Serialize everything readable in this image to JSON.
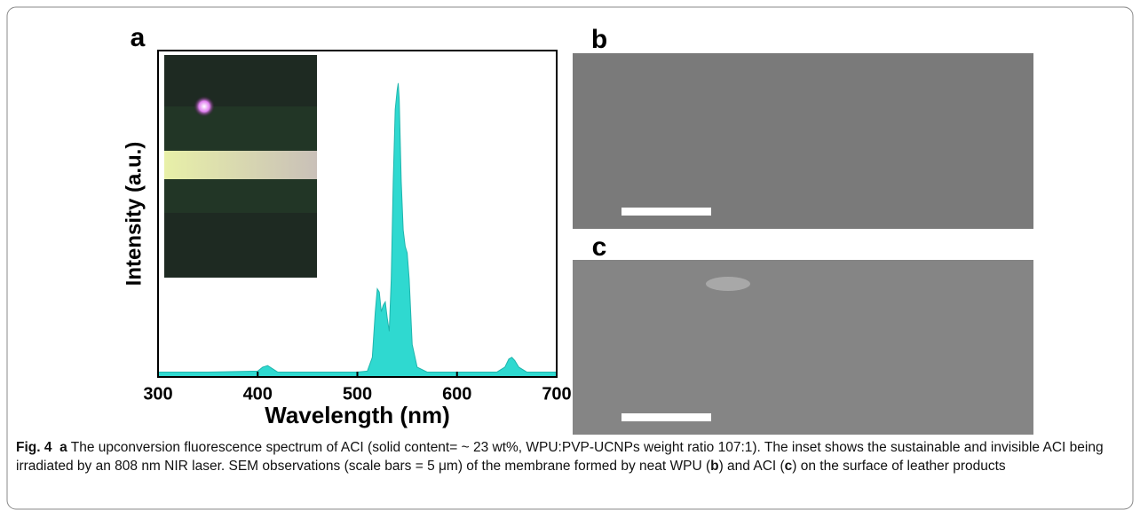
{
  "panel_labels": [
    "a",
    "b",
    "c"
  ],
  "chart_data": {
    "type": "area",
    "xlabel": "Wavelength (nm)",
    "ylabel": "Intensity (a.u.)",
    "color": "#2fd9d0",
    "x": [
      300,
      350,
      400,
      405,
      410,
      415,
      420,
      450,
      500,
      510,
      515,
      518,
      520,
      522,
      524,
      526,
      528,
      530,
      532,
      534,
      536,
      538,
      540,
      541,
      542,
      544,
      546,
      548,
      550,
      552,
      555,
      560,
      570,
      600,
      640,
      648,
      652,
      655,
      658,
      662,
      670,
      700
    ],
    "values": [
      1.5,
      1.5,
      1.8,
      3,
      3.5,
      2.5,
      1.5,
      1.5,
      1.5,
      1.8,
      6,
      20,
      27,
      26,
      20,
      22,
      23,
      18,
      14,
      30,
      60,
      82,
      88,
      90,
      85,
      60,
      45,
      40,
      38,
      30,
      10,
      3,
      1.5,
      1.5,
      1.5,
      3,
      5.5,
      6,
      5,
      3,
      1.5,
      1.5
    ],
    "xlim": [
      300,
      700
    ],
    "xticks": [
      300,
      400,
      500,
      600,
      700
    ],
    "ylim": [
      0,
      100
    ]
  },
  "caption": {
    "runs": [
      "Fig. 4",
      "a",
      "The upconversion fluorescence spectrum of ACI (solid content= ~ 23 wt%, WPU:PVP-UCNPs weight ratio 107:1). The inset shows the sustainable and invisible ACI being irradiated by an 808 nm NIR laser. SEM observations (scale bars = 5 μm) of the membrane formed by neat WPU (",
      "b",
      ") and ACI (",
      "c",
      ") on the surface of leather products"
    ]
  }
}
